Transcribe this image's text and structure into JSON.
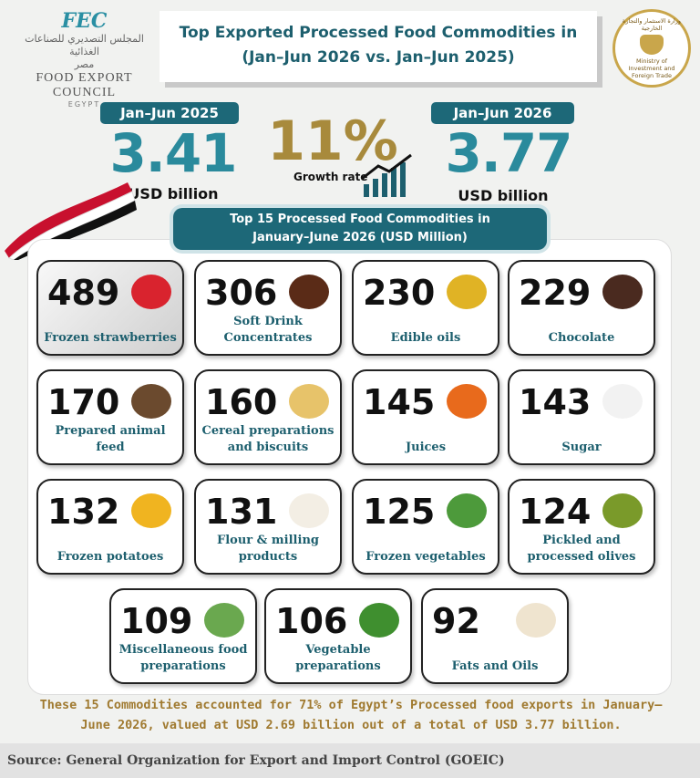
{
  "header": {
    "title_line1": "Top Exported Processed Food Commodities in",
    "title_line2": "(Jan–Jun 2026 vs. Jan–Jun 2025)"
  },
  "logo": {
    "abbr": "FEC",
    "arabic_name": "المجلس التصديري للصناعات الغذائية",
    "arabic_country": "مصر",
    "name": "FOOD EXPORT COUNCIL",
    "country": "EGYPT"
  },
  "seal": {
    "arabic": "وزارة الاستثمار والتجارة الخارجية",
    "english": "Ministry of Investment and Foreign Trade"
  },
  "stats": {
    "period_2025": "Jan–Jun 2025",
    "value_2025": 3.41,
    "unit_2025": "USD billion",
    "growth": "11%",
    "growth_label": "Growth rate",
    "period_2026": "Jan–Jun 2026",
    "value_2026": 3.77,
    "unit_2026": "USD billion"
  },
  "panel": {
    "title_line1": "Top 15 Processed Food Commodities in",
    "title_line2": "January–June 2026 (USD Million)",
    "items": [
      {
        "value": 489,
        "label": "Frozen strawberries"
      },
      {
        "value": 306,
        "label": "Soft Drink Concentrates"
      },
      {
        "value": 230,
        "label": "Edible oils"
      },
      {
        "value": 229,
        "label": "Chocolate"
      },
      {
        "value": 170,
        "label": "Prepared animal feed"
      },
      {
        "value": 160,
        "label": "Cereal preparations and biscuits"
      },
      {
        "value": 145,
        "label": "Juices"
      },
      {
        "value": 143,
        "label": "Sugar"
      },
      {
        "value": 132,
        "label": "Frozen potatoes"
      },
      {
        "value": 131,
        "label": "Flour & milling products"
      },
      {
        "value": 125,
        "label": "Frozen vegetables"
      },
      {
        "value": 124,
        "label": "Pickled and processed olives"
      },
      {
        "value": 109,
        "label": "Miscellaneous food preparations"
      },
      {
        "value": 106,
        "label": "Vegetable preparations"
      },
      {
        "value": 92,
        "label": "Fats and Oils"
      }
    ]
  },
  "note": "These 15 Commodities accounted for 71% of Egypt’s Processed food exports in January–June 2026, valued at USD 2.69 billion out of a total of USD 3.77 billion.",
  "source": "Source: General Organization for Export and Import Control (GOEIC)"
}
